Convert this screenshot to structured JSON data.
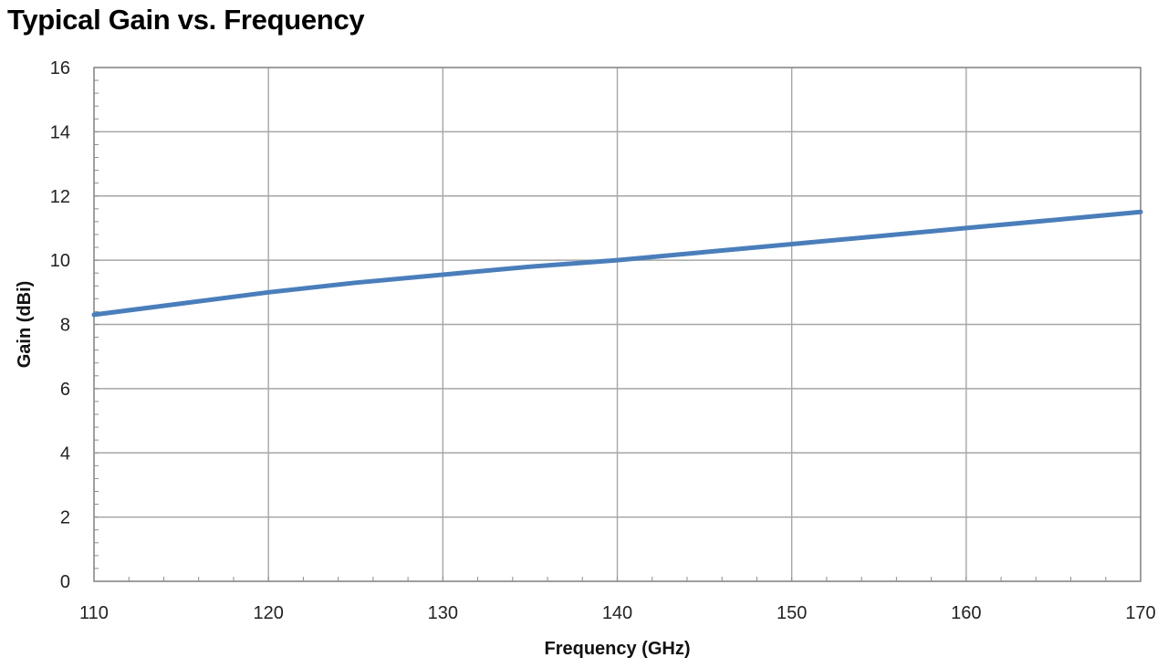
{
  "chart_data": {
    "type": "line",
    "title": "Typical Gain vs. Frequency",
    "xlabel": "Frequency (GHz)",
    "ylabel": "Gain (dBi)",
    "xlim": [
      110,
      170
    ],
    "ylim": [
      0,
      16
    ],
    "xticks": [
      "110",
      "120",
      "130",
      "140",
      "150",
      "160",
      "170"
    ],
    "yticks": [
      "0",
      "2",
      "4",
      "6",
      "8",
      "10",
      "12",
      "14",
      "16"
    ],
    "grid": true,
    "legend": "none",
    "series": [
      {
        "color": "#4a7ebb",
        "x": [
          110,
          115,
          120,
          125,
          130,
          135,
          140,
          145,
          150,
          155,
          160,
          165,
          170
        ],
        "y": [
          8.3,
          8.65,
          9.0,
          9.3,
          9.55,
          9.8,
          10.0,
          10.25,
          10.5,
          10.75,
          11.0,
          11.25,
          11.5
        ]
      }
    ]
  }
}
